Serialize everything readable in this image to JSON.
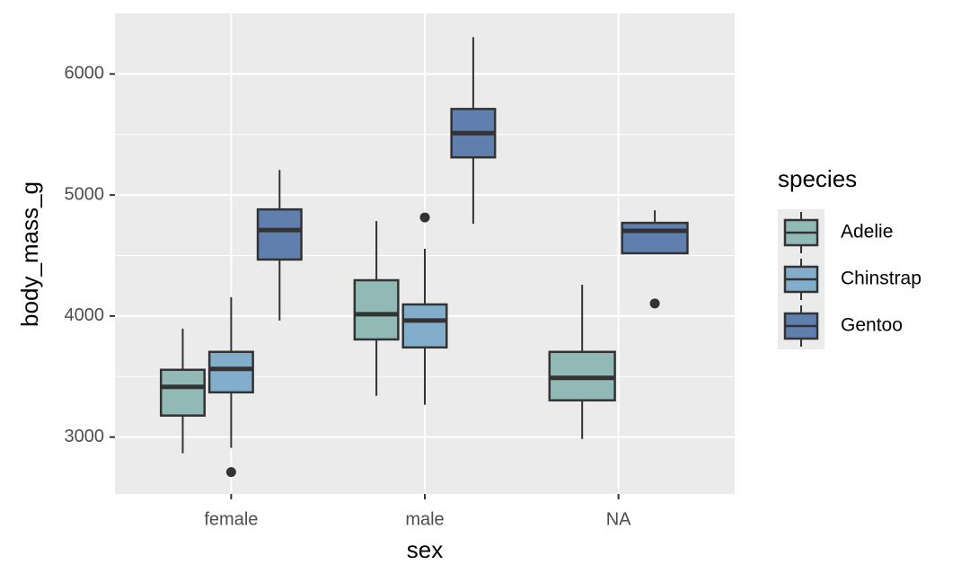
{
  "chart_data": {
    "type": "boxplot",
    "x_label": "sex",
    "y_label": "body_mass_g",
    "categories": [
      "female",
      "male",
      "NA"
    ],
    "ylim": [
      2530,
      6500
    ],
    "yticks": [
      3000,
      4000,
      5000,
      6000
    ],
    "grid": true,
    "legend_title": "species",
    "legend_position": "right",
    "series": [
      {
        "name": "Adelie",
        "color": "#91bab6",
        "values": [
          {
            "low": 2867,
            "q1": 3178,
            "median": 3415,
            "q3": 3556,
            "high": 3896,
            "outliers": []
          },
          {
            "low": 3341,
            "q1": 3807,
            "median": 4015,
            "q3": 4296,
            "high": 4785,
            "outliers": []
          },
          {
            "low": 2985,
            "q1": 3304,
            "median": 3489,
            "q3": 3704,
            "high": 4259,
            "outliers": []
          }
        ]
      },
      {
        "name": "Chinstrap",
        "color": "#82aecb",
        "values": [
          {
            "low": 2911,
            "q1": 3370,
            "median": 3563,
            "q3": 3704,
            "high": 4156,
            "outliers": [
              2711
            ]
          },
          {
            "low": 3267,
            "q1": 3741,
            "median": 3963,
            "q3": 4096,
            "high": 4556,
            "outliers": [
              4815
            ]
          },
          null
        ]
      },
      {
        "name": "Gentoo",
        "color": "#5f7faf",
        "values": [
          {
            "low": 3963,
            "q1": 4467,
            "median": 4711,
            "q3": 4881,
            "high": 5207,
            "outliers": []
          },
          {
            "low": 4763,
            "q1": 5311,
            "median": 5511,
            "q3": 5711,
            "high": 6304,
            "outliers": []
          },
          {
            "low": 4519,
            "q1": 4519,
            "median": 4704,
            "q3": 4770,
            "high": 4874,
            "outliers": [
              4104
            ]
          }
        ]
      }
    ]
  }
}
